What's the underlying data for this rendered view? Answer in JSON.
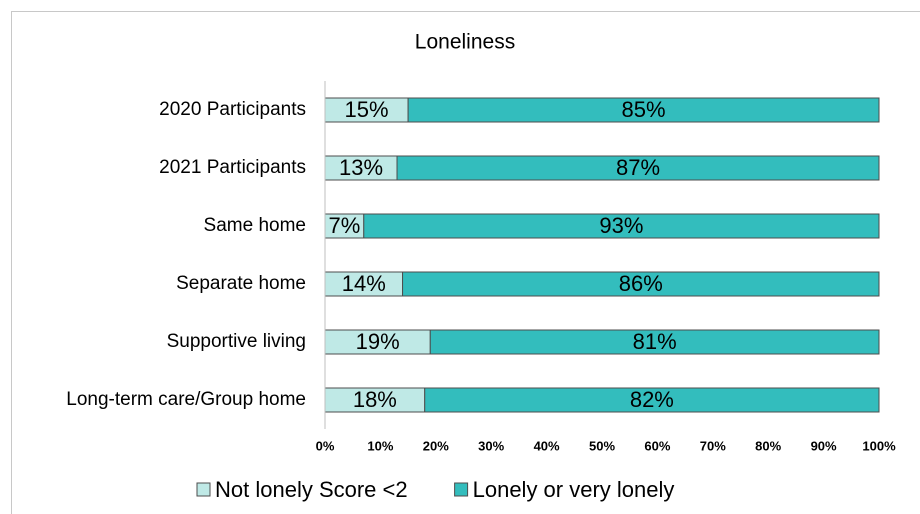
{
  "chart_data": {
    "type": "bar",
    "orientation": "horizontal",
    "stacked": true,
    "title": "Loneliness",
    "categories": [
      "2020 Participants",
      "2021 Participants",
      "Same home",
      "Separate home",
      "Supportive living",
      "Long-term care/Group home"
    ],
    "series": [
      {
        "name": "Not lonely Score <2",
        "color": "#bfe9e6",
        "values": [
          15,
          13,
          7,
          14,
          19,
          18
        ],
        "value_labels": [
          "15%",
          "13%",
          "7%",
          "14%",
          "19%",
          "18%"
        ]
      },
      {
        "name": "Lonely or very lonely",
        "color": "#33bdbd",
        "values": [
          85,
          87,
          93,
          86,
          81,
          82
        ],
        "value_labels": [
          "85%",
          "87%",
          "93%",
          "86%",
          "81%",
          "82%"
        ]
      }
    ],
    "xlim": [
      0,
      100
    ],
    "xticks": [
      {
        "value": 0,
        "label": "0%"
      },
      {
        "value": 10,
        "label": "10%"
      },
      {
        "value": 20,
        "label": "20%"
      },
      {
        "value": 30,
        "label": "30%"
      },
      {
        "value": 40,
        "label": "40%"
      },
      {
        "value": 50,
        "label": "50%"
      },
      {
        "value": 60,
        "label": "60%"
      },
      {
        "value": 70,
        "label": "70%"
      },
      {
        "value": 80,
        "label": "80%"
      },
      {
        "value": 90,
        "label": "90%"
      },
      {
        "value": 100,
        "label": "100%"
      }
    ],
    "legend": "bottom"
  }
}
